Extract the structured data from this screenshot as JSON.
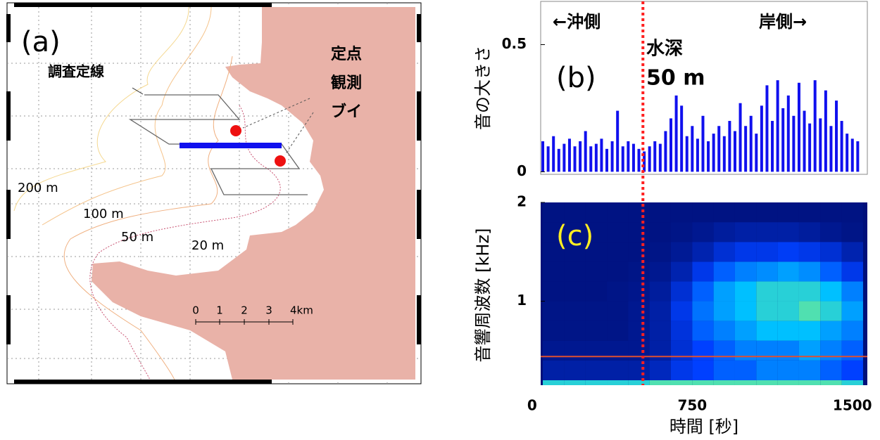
{
  "map": {
    "label": "(a)",
    "survey_line": "調査定線",
    "buoy": [
      "定点",
      "観測",
      "ブイ"
    ],
    "contours": [
      "200 m",
      "100 m",
      "50 m",
      "20 m"
    ],
    "scale": [
      "0",
      "1",
      "2",
      "3",
      "4km"
    ]
  },
  "chart_data": [
    {
      "type": "bar",
      "panel_label": "(b)",
      "ylabel": "音の大きさ",
      "annotations": [
        "←沖側",
        "岸側→",
        "水深",
        "50 m"
      ],
      "color": "#1010ee",
      "x": [
        50,
        75,
        100,
        125,
        150,
        175,
        200,
        225,
        250,
        275,
        300,
        325,
        350,
        375,
        400,
        425,
        450,
        475,
        500,
        525,
        550,
        575,
        600,
        625,
        650,
        675,
        700,
        725,
        750,
        775,
        800,
        825,
        850,
        875,
        900,
        925,
        950,
        975,
        1000,
        1025,
        1050,
        1075,
        1100,
        1125,
        1150,
        1175,
        1200,
        1225,
        1250,
        1275,
        1300,
        1325,
        1350,
        1375,
        1400,
        1425,
        1450,
        1475,
        1500,
        1525
      ],
      "values": [
        0.12,
        0.1,
        0.14,
        0.09,
        0.11,
        0.13,
        0.1,
        0.12,
        0.16,
        0.1,
        0.11,
        0.13,
        0.09,
        0.12,
        0.24,
        0.1,
        0.12,
        0.11,
        0.09,
        0.08,
        0.1,
        0.12,
        0.11,
        0.16,
        0.21,
        0.3,
        0.26,
        0.14,
        0.18,
        0.13,
        0.22,
        0.12,
        0.15,
        0.18,
        0.14,
        0.2,
        0.16,
        0.27,
        0.18,
        0.22,
        0.15,
        0.26,
        0.34,
        0.2,
        0.36,
        0.25,
        0.3,
        0.22,
        0.35,
        0.24,
        0.19,
        0.36,
        0.21,
        0.32,
        0.18,
        0.28,
        0.2,
        0.15,
        0.13,
        0.12
      ],
      "xlim": [
        40,
        1570
      ],
      "ylim": [
        -0.01,
        0.67
      ],
      "yticks": [
        0,
        0.5
      ],
      "reference_x": 519,
      "reference_color": "#ff2020"
    },
    {
      "type": "heatmap",
      "panel_label": "(c)",
      "ylabel": "音響周波数 [kHz]",
      "xlabel": "時間 [秒]",
      "colormap": "jet",
      "x_bins": [
        50,
        150,
        250,
        350,
        450,
        550,
        650,
        750,
        850,
        950,
        1050,
        1150,
        1250,
        1350,
        1450,
        1550
      ],
      "y_bins": [
        0.15,
        0.2,
        0.4,
        0.6,
        0.8,
        1.0,
        1.2,
        1.4,
        1.6,
        1.8,
        2.0
      ],
      "z": [
        [
          0.55,
          0.55,
          0.55,
          0.55,
          0.55,
          0.6,
          0.6,
          0.6,
          0.6,
          0.6,
          0.6,
          0.6,
          0.6,
          0.6,
          0.55
        ],
        [
          0.1,
          0.1,
          0.1,
          0.1,
          0.1,
          0.15,
          0.25,
          0.3,
          0.35,
          0.35,
          0.4,
          0.4,
          0.4,
          0.35,
          0.3
        ],
        [
          0.05,
          0.05,
          0.05,
          0.05,
          0.05,
          0.1,
          0.2,
          0.3,
          0.35,
          0.4,
          0.4,
          0.4,
          0.45,
          0.4,
          0.35
        ],
        [
          0.03,
          0.03,
          0.03,
          0.03,
          0.05,
          0.1,
          0.22,
          0.35,
          0.4,
          0.45,
          0.5,
          0.5,
          0.5,
          0.45,
          0.4
        ],
        [
          0.03,
          0.03,
          0.03,
          0.03,
          0.05,
          0.1,
          0.25,
          0.38,
          0.45,
          0.5,
          0.55,
          0.55,
          0.6,
          0.55,
          0.45
        ],
        [
          0.02,
          0.02,
          0.02,
          0.03,
          0.04,
          0.08,
          0.2,
          0.35,
          0.45,
          0.5,
          0.55,
          0.55,
          0.55,
          0.5,
          0.4
        ],
        [
          0.02,
          0.02,
          0.02,
          0.02,
          0.03,
          0.05,
          0.12,
          0.25,
          0.35,
          0.4,
          0.42,
          0.45,
          0.42,
          0.35,
          0.25
        ],
        [
          0.02,
          0.02,
          0.02,
          0.02,
          0.02,
          0.03,
          0.06,
          0.12,
          0.2,
          0.25,
          0.25,
          0.28,
          0.25,
          0.2,
          0.12
        ],
        [
          0.02,
          0.02,
          0.02,
          0.02,
          0.02,
          0.02,
          0.03,
          0.05,
          0.08,
          0.1,
          0.1,
          0.1,
          0.08,
          0.05,
          0.03
        ],
        [
          0.02,
          0.02,
          0.02,
          0.02,
          0.02,
          0.02,
          0.02,
          0.02,
          0.02,
          0.02,
          0.02,
          0.02,
          0.02,
          0.02,
          0.02
        ]
      ],
      "line_y": 0.44,
      "line_color": "#e05030",
      "xlim": [
        40,
        1570
      ],
      "ylim": [
        0.15,
        2
      ],
      "xticks": [
        0,
        750,
        1500
      ],
      "yticks": [
        1,
        2
      ]
    }
  ]
}
